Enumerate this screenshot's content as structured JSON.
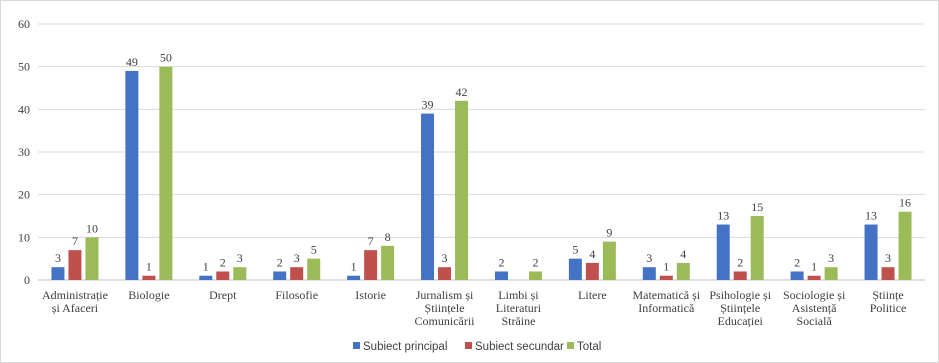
{
  "chart_data": {
    "type": "bar",
    "categories": [
      [
        "Administrație",
        "și Afaceri"
      ],
      [
        "Biologie"
      ],
      [
        "Drept"
      ],
      [
        "Filosofie"
      ],
      [
        "Istorie"
      ],
      [
        "Jurnalism și",
        "Științele",
        "Comunicării"
      ],
      [
        "Limbi și",
        "Literaturi",
        "Străine"
      ],
      [
        "Litere"
      ],
      [
        "Matematică și",
        "Informatică"
      ],
      [
        "Psihologie și",
        "Științele",
        "Educației"
      ],
      [
        "Sociologie și",
        "Asistență",
        "Socială"
      ],
      [
        "Științe",
        "Politice"
      ]
    ],
    "series": [
      {
        "name": "Subiect principal",
        "color": "#4472c4",
        "values": [
          3,
          49,
          1,
          2,
          1,
          39,
          2,
          5,
          3,
          13,
          2,
          13
        ]
      },
      {
        "name": "Subiect secundar",
        "color": "#c0504d",
        "values": [
          7,
          1,
          2,
          3,
          7,
          3,
          null,
          4,
          1,
          2,
          1,
          3
        ]
      },
      {
        "name": "Total",
        "color": "#9bbb59",
        "values": [
          10,
          50,
          3,
          5,
          8,
          42,
          2,
          9,
          4,
          15,
          3,
          16
        ]
      }
    ],
    "yticks": [
      "0",
      "10",
      "20",
      "30",
      "40",
      "50",
      "60"
    ],
    "ylim": [
      0,
      60
    ],
    "grid": true,
    "legend": "bottom",
    "data_labels": true
  }
}
